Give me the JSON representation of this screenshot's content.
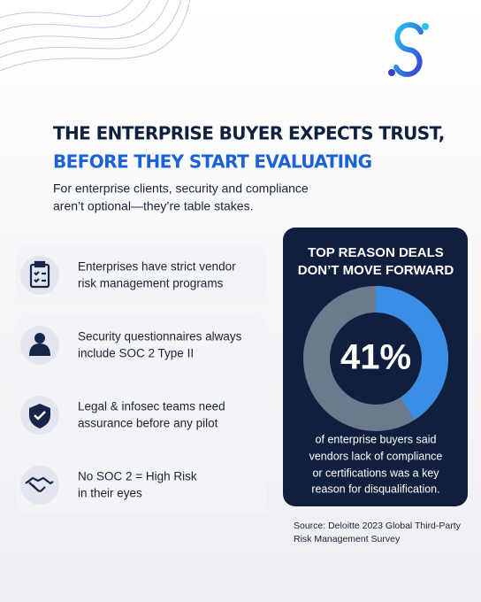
{
  "header": {
    "title": [
      "THE ENTERPRISE BUYER EXPECTS TRUST,",
      "BEFORE THEY START EVALUATING"
    ],
    "subtitle": [
      "For enterprise clients, security and compliance",
      "aren’t optional—they’re table stakes."
    ]
  },
  "items": [
    {
      "text": [
        "Enterprises have strict vendor",
        "risk management programs"
      ]
    },
    {
      "text": [
        "Security questionnaires always",
        "include SOC 2 Type II"
      ]
    },
    {
      "text": [
        "Legal & infosec teams need",
        "assurance before any pilot"
      ]
    },
    {
      "text": [
        "No SOC 2 = High Risk",
        "in their eyes"
      ]
    }
  ],
  "card": {
    "title": [
      "TOP REASON DEALS",
      "DON’T MOVE FORWARD"
    ],
    "donut": {
      "value": 41,
      "label": "41%",
      "color": "#3a8ee6",
      "rest_color": "#6d7a8e"
    },
    "description": [
      "of enterprise buyers said",
      "vendors lack of compliance",
      "or certifications was a key",
      "reason for disqualification."
    ]
  },
  "source": [
    "Source: Deloitte 2023 Global Third-Party",
    "Risk Management Survey"
  ]
}
